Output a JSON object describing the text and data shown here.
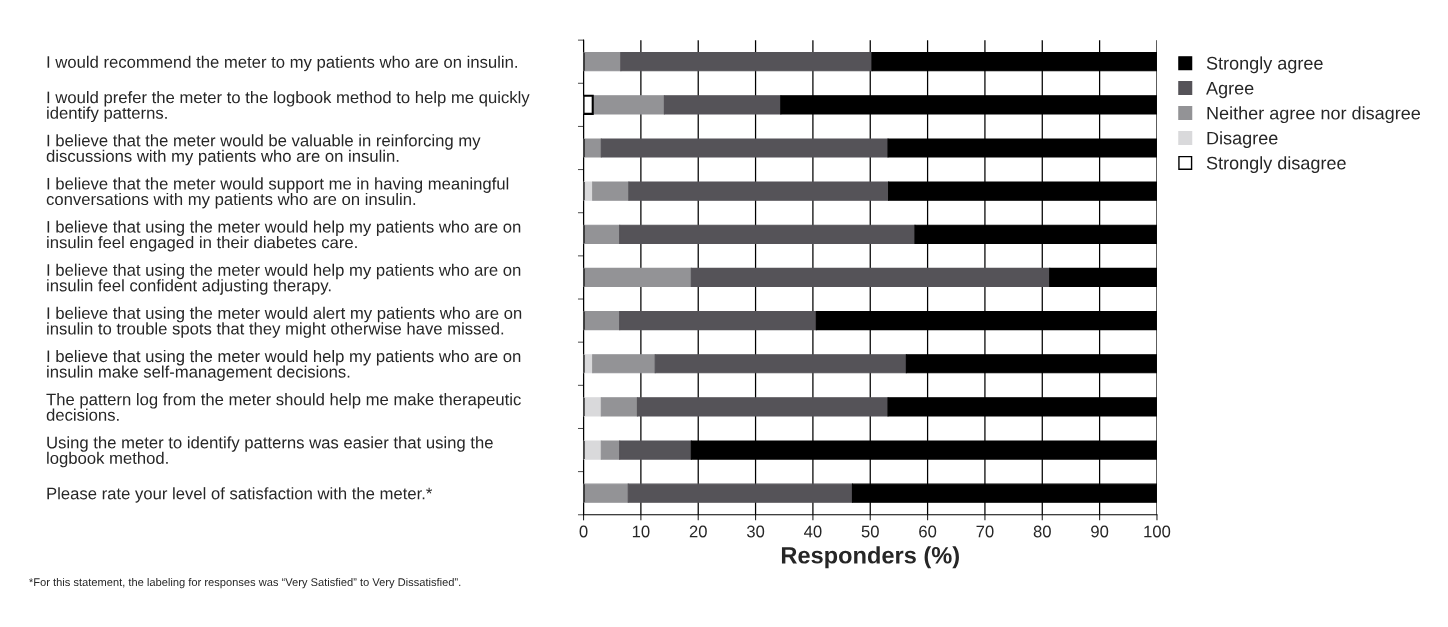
{
  "chart_data": {
    "type": "bar",
    "orientation": "horizontal",
    "stacked": true,
    "categories": [
      "I would recommend the meter to my patients who are on insulin.",
      "I would prefer the meter to the logbook method to help me quickly\nidentify patterns.",
      "I believe that the meter would be valuable in reinforcing my\ndiscussions with my patients who are on insulin.",
      "I believe that the meter would support me in having meaningful\nconversations with my patients who are on insulin.",
      "I believe that using the meter would help my patients who are on\ninsulin feel engaged in their diabetes care.",
      "I believe that using the meter would help my patients who are on\ninsulin feel confident adjusting therapy.",
      "I believe that using the meter would alert my patients who are on\ninsulin to trouble spots that they might otherwise have missed.",
      "I believe that using the meter would help my patients who are on\ninsulin make self-management decisions.",
      "The pattern log from the meter should help me make therapeutic\ndecisions.",
      "Using the meter to identify patterns was easier that using the\nlogbook method.",
      "Please rate your level of satisfaction with the meter.*"
    ],
    "series": [
      {
        "name": "Strongly disagree",
        "color": "#ffffff",
        "values": [
          0,
          1.6,
          0,
          0,
          0,
          0,
          0,
          0,
          0,
          0,
          0
        ]
      },
      {
        "name": "Disagree",
        "color": "#d9d9db",
        "values": [
          0,
          0,
          0,
          1.6,
          0,
          0,
          0,
          1.6,
          3.1,
          3.1,
          0
        ]
      },
      {
        "name": "Neither agree nor disagree",
        "color": "#939396",
        "values": [
          6.5,
          12.5,
          3.1,
          6.3,
          6.3,
          18.8,
          6.3,
          10.9,
          6.3,
          3.2,
          7.8
        ]
      },
      {
        "name": "Agree",
        "color": "#555358",
        "values": [
          43.8,
          20.3,
          50,
          45.3,
          51.5,
          62.5,
          34.3,
          43.8,
          43.7,
          12.5,
          39.1
        ]
      },
      {
        "name": "Strongly agree",
        "color": "#000000",
        "values": [
          49.7,
          65.6,
          46.9,
          46.8,
          42.2,
          18.7,
          59.4,
          43.7,
          46.9,
          81.2,
          53.1
        ]
      }
    ],
    "xlabel": "Responders (%)",
    "xlim": [
      0,
      100
    ],
    "xticks": [
      0,
      10,
      20,
      30,
      40,
      50,
      60,
      70,
      80,
      90,
      100
    ],
    "grid": "x",
    "legend": "top right",
    "annotations": [
      "*For this statement, the labeling for responses was “Very Satisfied” to Very Dissatisfied”."
    ]
  }
}
